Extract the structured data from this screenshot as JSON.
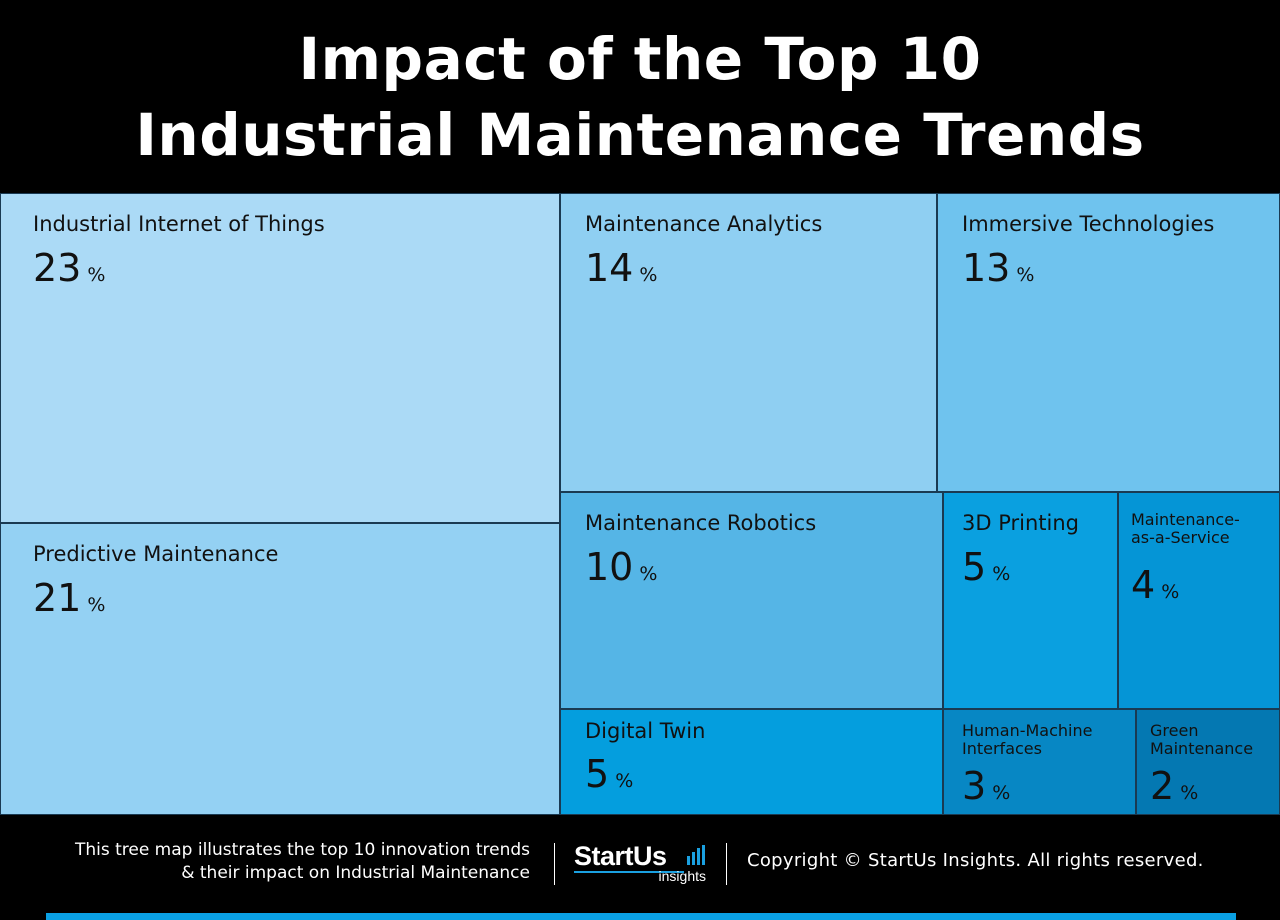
{
  "title": {
    "line1": "Impact of the Top 10",
    "line2": "Industrial Maintenance Trends"
  },
  "chart_data": {
    "type": "treemap",
    "value_unit": "%",
    "items": [
      {
        "label": "Industrial Internet of Things",
        "value": 23,
        "color": "#abdaf6"
      },
      {
        "label": "Predictive Maintenance",
        "value": 21,
        "color": "#94d1f3"
      },
      {
        "label": "Maintenance Analytics",
        "value": 14,
        "color": "#8fcff2"
      },
      {
        "label": "Immersive Technologies",
        "value": 13,
        "color": "#6fc3ee"
      },
      {
        "label": "Maintenance Robotics",
        "value": 10,
        "color": "#55b5e6"
      },
      {
        "label": "3D Printing",
        "value": 5,
        "color": "#0aa0e0"
      },
      {
        "label": "Maintenance-as-a-Service",
        "value": 4,
        "color": "#0595d6"
      },
      {
        "label": "Digital Twin",
        "value": 5,
        "color": "#049ede"
      },
      {
        "label": "Human-Machine Interfaces",
        "value": 3,
        "color": "#0787c4"
      },
      {
        "label": "Green Maintenance",
        "value": 2,
        "color": "#0478b2"
      }
    ]
  },
  "footer": {
    "description_line1": "This tree map illustrates the top 10 innovation trends",
    "description_line2": "& their impact on Industrial Maintenance",
    "logo_main": "StartUs",
    "logo_sub": "insights",
    "copyright": "Copyright © StartUs Insights. All rights reserved.",
    "accent_color": "#0aa0e4"
  }
}
